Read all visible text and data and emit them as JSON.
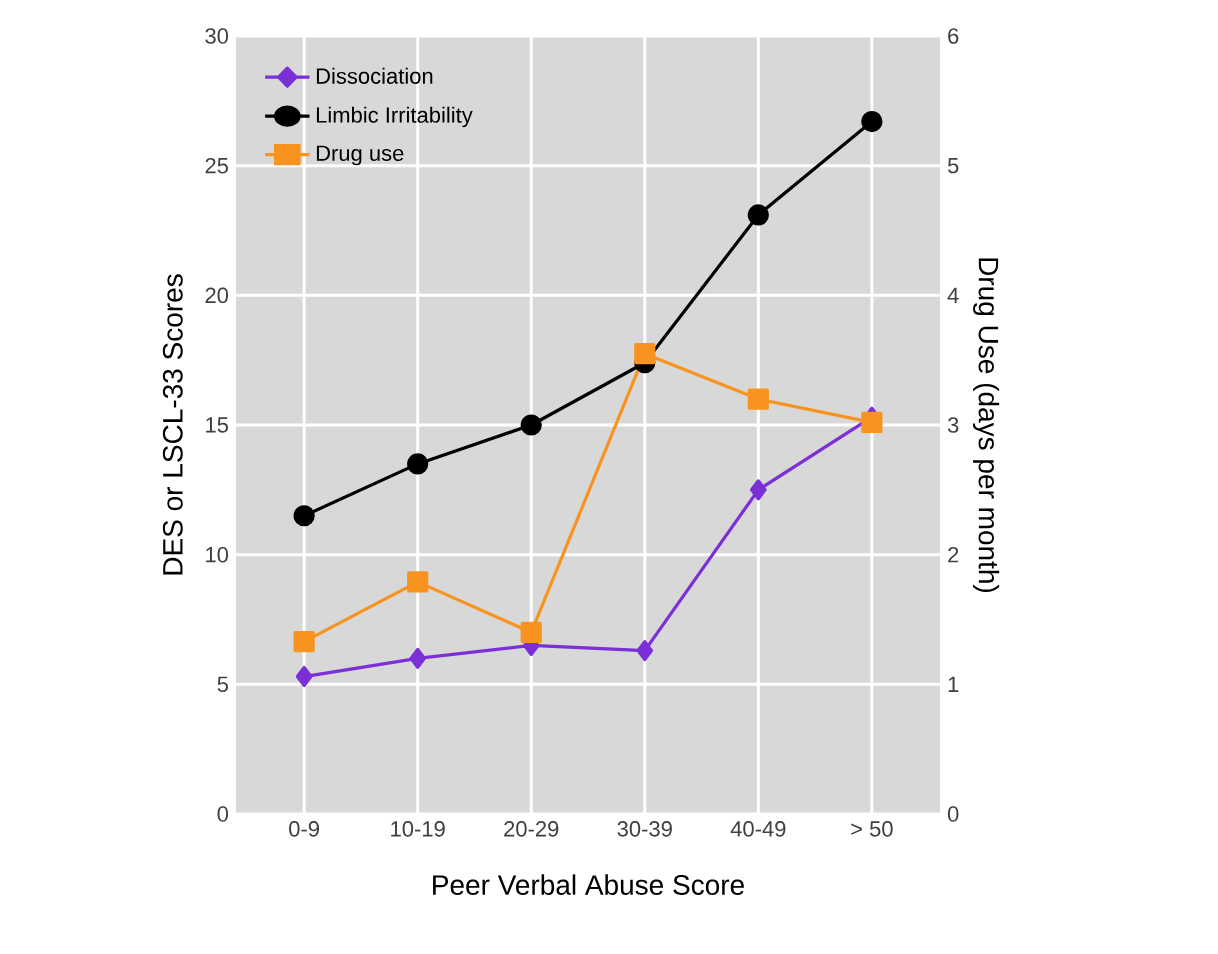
{
  "chart_data": {
    "type": "line",
    "xlabel": "Peer Verbal Abuse Score",
    "ylabel": "DES or LSCL-33 Scores",
    "y2label": "Drug Use (days per month)",
    "categories": [
      "0-9",
      "10-19",
      "20-29",
      "30-39",
      "40-49",
      "> 50"
    ],
    "series": [
      {
        "name": "Dissociation",
        "color": "#7b2fd6",
        "marker": "diamond",
        "values": [
          5.3,
          6.0,
          6.5,
          6.3,
          12.5,
          15.3
        ]
      },
      {
        "name": "Limbic Irritability",
        "color": "#000000",
        "marker": "circle",
        "values": [
          11.5,
          13.5,
          15.0,
          17.4,
          23.1,
          26.7
        ]
      },
      {
        "name": "Drug use",
        "color": "#f7931e",
        "marker": "square",
        "axis": "y2",
        "values": [
          1.33,
          1.79,
          1.4,
          3.55,
          3.2,
          3.02
        ]
      }
    ],
    "ylim": [
      0,
      30
    ],
    "yticks": [
      0,
      5,
      10,
      15,
      20,
      25,
      30
    ],
    "y2lim": [
      0,
      6
    ],
    "y2ticks": [
      0,
      1,
      2,
      3,
      4,
      5,
      6
    ],
    "grid": true,
    "legend": "top left"
  }
}
